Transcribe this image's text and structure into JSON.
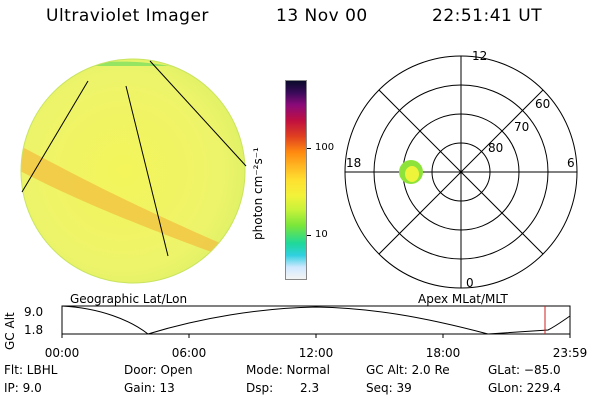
{
  "header": {
    "instrument": "Ultraviolet Imager",
    "date": "13 Nov 00",
    "time": "22:51:41 UT"
  },
  "colorbar": {
    "unit": "photon cm⁻²s⁻¹",
    "label_100": "100",
    "label_10": "10"
  },
  "polar": {
    "label_12": "12",
    "label_18": "18",
    "label_6": "6",
    "label_0": "0",
    "label_60": "60",
    "label_70": "70",
    "label_80": "80"
  },
  "panels": {
    "left_caption": "Geographic Lat/Lon",
    "right_caption": "Apex MLat/MLT"
  },
  "altitude": {
    "axis_label": "GC Alt",
    "y_max": "9.0",
    "y_min": "1.8",
    "ticks": [
      "00:00",
      "06:00",
      "12:00",
      "18:00",
      "23:59"
    ]
  },
  "footer": {
    "flt": "Flt: LBHL",
    "ip": "IP:  9.0",
    "door": "Door: Open",
    "gain": "Gain: 13",
    "mode": "Mode: Normal",
    "dsp_label": "Dsp:",
    "dsp_value": "2.3",
    "gcalt": "GC Alt: 2.0 Re",
    "seq": "Seq: 39",
    "glat": "GLat: −85.0",
    "glon": "GLon: 229.4"
  }
}
